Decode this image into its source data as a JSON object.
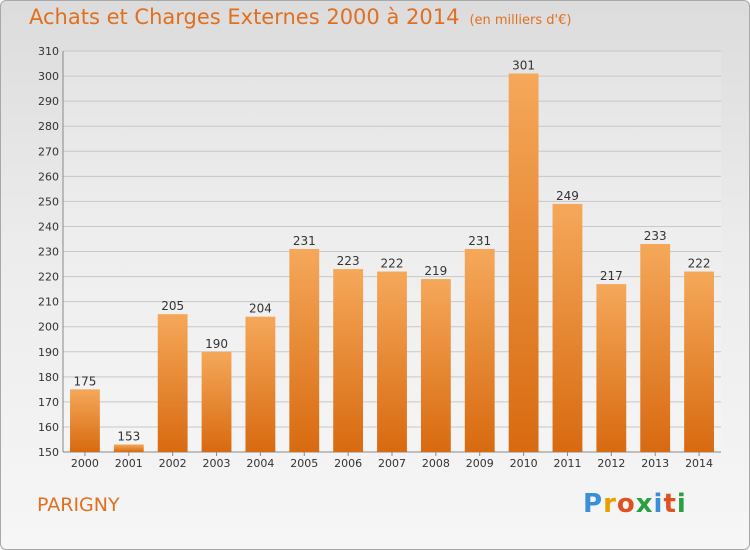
{
  "title": "Achats et Charges Externes 2000 à 2014",
  "unit": "(en milliers d'€)",
  "commune": "PARIGNY",
  "brand": {
    "letters": [
      "P",
      "r",
      "o",
      "x",
      "i",
      "t",
      "i"
    ],
    "colors": [
      "#3a8fd6",
      "#e8a000",
      "#e05020",
      "#2aa040",
      "#3a8fd6",
      "#e05020",
      "#2aa040"
    ]
  },
  "colors": {
    "bar_light": "#f5a85a",
    "bar_dark": "#d86a10",
    "accent": "#e07020",
    "grid": "#c8c8c8"
  },
  "chart_data": {
    "type": "bar",
    "title": "Achats et Charges Externes 2000 à 2014",
    "categories": [
      "2000",
      "2001",
      "2002",
      "2003",
      "2004",
      "2005",
      "2006",
      "2007",
      "2008",
      "2009",
      "2010",
      "2011",
      "2012",
      "2013",
      "2014"
    ],
    "values": [
      175,
      153,
      205,
      190,
      204,
      231,
      223,
      222,
      219,
      231,
      301,
      249,
      217,
      233,
      222
    ],
    "ylim": [
      150,
      310
    ],
    "yticks": [
      150,
      160,
      170,
      180,
      190,
      200,
      210,
      220,
      230,
      240,
      250,
      260,
      270,
      280,
      290,
      300,
      310
    ],
    "grid": "horizontal",
    "xlabel": "",
    "ylabel": ""
  }
}
